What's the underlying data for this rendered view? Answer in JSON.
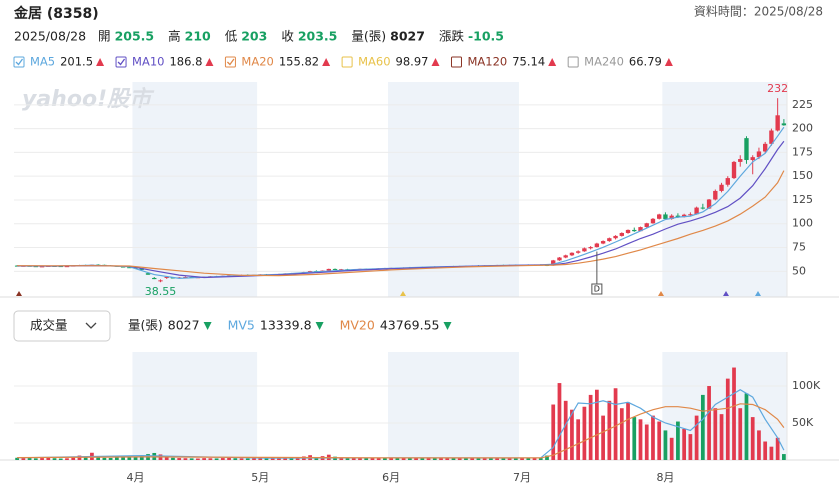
{
  "header": {
    "name": "金居 (8358)",
    "data_time": "資料時間：2025/08/28",
    "date": "2025/08/28",
    "quote": [
      {
        "label": "開",
        "value": 205.5,
        "color": "#18a062"
      },
      {
        "label": "高",
        "value": 210,
        "color": "#18a062"
      },
      {
        "label": "低",
        "value": 203,
        "color": "#18a062"
      },
      {
        "label": "收",
        "value": 203.5,
        "color": "#18a062"
      },
      {
        "label": "量(張)",
        "value": 8027,
        "color": "#222222"
      },
      {
        "label": "漲跌",
        "value": -10.5,
        "color": "#18a062"
      }
    ]
  },
  "watermark": "yahoo!股市",
  "chart_data": {
    "type": "candlestick",
    "up_color": "#e23a4e",
    "down_color": "#18a062",
    "categories": [
      null,
      null,
      null,
      null,
      null,
      null,
      null,
      null,
      null,
      null,
      null,
      null,
      null,
      null,
      null,
      null,
      null,
      null,
      null,
      "4月",
      null,
      null,
      null,
      null,
      null,
      null,
      null,
      null,
      null,
      null,
      null,
      null,
      null,
      null,
      null,
      null,
      null,
      null,
      null,
      "5月",
      null,
      null,
      null,
      null,
      null,
      null,
      null,
      null,
      null,
      null,
      null,
      null,
      null,
      null,
      null,
      null,
      null,
      null,
      null,
      null,
      "6月",
      null,
      null,
      null,
      null,
      null,
      null,
      null,
      null,
      null,
      null,
      null,
      null,
      null,
      null,
      null,
      null,
      null,
      null,
      null,
      null,
      "7月",
      null,
      null,
      null,
      null,
      null,
      null,
      null,
      null,
      null,
      null,
      null,
      null,
      null,
      null,
      null,
      null,
      null,
      null,
      null,
      null,
      null,
      null,
      "8月",
      null,
      null,
      null,
      null,
      null,
      null,
      null,
      null,
      null,
      null,
      null,
      null,
      null,
      null,
      null,
      null,
      null,
      null,
      null
    ],
    "ohlc": [
      [
        56,
        56.5,
        55.2,
        55.5
      ],
      [
        55.5,
        56,
        55,
        55.8
      ],
      [
        55.8,
        56.2,
        55.3,
        55.4
      ],
      [
        55.4,
        55.6,
        54.8,
        55
      ],
      [
        55,
        55.5,
        54.6,
        55.2
      ],
      [
        55.2,
        55.8,
        55,
        55.6
      ],
      [
        55.6,
        56,
        55.2,
        55.5
      ],
      [
        55.5,
        55.7,
        55,
        55.1
      ],
      [
        55.1,
        55.6,
        54.9,
        55.4
      ],
      [
        55.4,
        56.2,
        55.3,
        56
      ],
      [
        56,
        56.8,
        55.8,
        56.5
      ],
      [
        56.5,
        57,
        56,
        56.2
      ],
      [
        56.2,
        57.2,
        56,
        57
      ],
      [
        57,
        57.5,
        56.5,
        56.8
      ],
      [
        56.8,
        57,
        56,
        56.2
      ],
      [
        56.2,
        56.5,
        55.5,
        55.8
      ],
      [
        55.8,
        56,
        54.8,
        55
      ],
      [
        55,
        55.2,
        54,
        54.3
      ],
      [
        54.3,
        54.8,
        53.5,
        54
      ],
      [
        54,
        54.5,
        53,
        53.2
      ],
      [
        53.2,
        53.5,
        51,
        51.5
      ],
      [
        48,
        48.5,
        46.4,
        46.4
      ],
      [
        43,
        44,
        41.8,
        41.8
      ],
      [
        40,
        41.5,
        38.55,
        40.5
      ],
      [
        43,
        44.5,
        42,
        44.2
      ],
      [
        43.5,
        44,
        42.5,
        43
      ],
      [
        43,
        44,
        42.6,
        43.6
      ],
      [
        43.6,
        44.5,
        43.2,
        44
      ],
      [
        44,
        44.3,
        43,
        43.4
      ],
      [
        43.4,
        44,
        43,
        43.8
      ],
      [
        43.8,
        44.6,
        43.5,
        44.4
      ],
      [
        44.4,
        45,
        44,
        44.8
      ],
      [
        44.8,
        45.2,
        44.3,
        44.6
      ],
      [
        44.6,
        45.5,
        44.5,
        45.3
      ],
      [
        45.3,
        46,
        45,
        45.8
      ],
      [
        45.8,
        46.2,
        45.3,
        45.6
      ],
      [
        45.6,
        46.5,
        45.5,
        46.2
      ],
      [
        46.2,
        46.8,
        45.8,
        46
      ],
      [
        46,
        46.6,
        45.7,
        46.4
      ],
      [
        46.4,
        47,
        46,
        46.8
      ],
      [
        46.8,
        47.2,
        46.3,
        46.5
      ],
      [
        46.5,
        47,
        46.2,
        46.9
      ],
      [
        46.9,
        47.5,
        46.6,
        47.2
      ],
      [
        47.2,
        48,
        47,
        47.8
      ],
      [
        47.8,
        48.3,
        47.2,
        47.5
      ],
      [
        47.5,
        48.5,
        47.3,
        48.3
      ],
      [
        48.3,
        49.5,
        48,
        49.2
      ],
      [
        49.2,
        50.5,
        49,
        50.2
      ],
      [
        50.2,
        51,
        49.6,
        49.8
      ],
      [
        49.8,
        51,
        49.5,
        50.8
      ],
      [
        50.8,
        52.8,
        50.5,
        52.5
      ],
      [
        52.5,
        53,
        51.6,
        51.8
      ],
      [
        51.8,
        52.5,
        51.2,
        52.2
      ],
      [
        52.2,
        52.6,
        51.5,
        51.7
      ],
      [
        51.7,
        52.3,
        51.2,
        52
      ],
      [
        52,
        52.8,
        51.8,
        52.6
      ],
      [
        52.6,
        53,
        52,
        52.3
      ],
      [
        52.3,
        53,
        52.1,
        52.8
      ],
      [
        52.8,
        53.5,
        52.5,
        53.2
      ],
      [
        53.2,
        53.6,
        52.7,
        53
      ],
      [
        53,
        53.8,
        52.8,
        53.6
      ],
      [
        53.6,
        54,
        53.2,
        53.4
      ],
      [
        53.4,
        54.2,
        53.2,
        54
      ],
      [
        54,
        54.6,
        53.6,
        53.8
      ],
      [
        53.8,
        54.5,
        53.5,
        54.3
      ],
      [
        54.3,
        54.8,
        53.9,
        54.1
      ],
      [
        54.1,
        55,
        54,
        54.8
      ],
      [
        54.8,
        55.3,
        54.4,
        54.6
      ],
      [
        54.6,
        55.2,
        54.3,
        55
      ],
      [
        55,
        55.6,
        54.7,
        55.3
      ],
      [
        55.3,
        55.7,
        54.9,
        55.1
      ],
      [
        55.1,
        55.8,
        55,
        55.6
      ],
      [
        55.6,
        56,
        55.2,
        55.4
      ],
      [
        55.4,
        56.2,
        55.3,
        56
      ],
      [
        56,
        56.5,
        55.6,
        55.8
      ],
      [
        55.8,
        56.4,
        55.5,
        56.2
      ],
      [
        56.2,
        56.6,
        55.8,
        56
      ],
      [
        56,
        56.8,
        55.9,
        56.5
      ],
      [
        56.5,
        57,
        56.1,
        56.3
      ],
      [
        56.3,
        56.9,
        56.1,
        56.7
      ],
      [
        56.7,
        57.2,
        56.3,
        56.5
      ],
      [
        56.5,
        57,
        56.2,
        56.8
      ],
      [
        56.8,
        57.3,
        56.4,
        56.6
      ],
      [
        56.6,
        57.2,
        56.3,
        57
      ],
      [
        57,
        57.4,
        56.5,
        56.7
      ],
      [
        56.7,
        57,
        55.5,
        55.8
      ],
      [
        56,
        62,
        55.8,
        61.5
      ],
      [
        61.5,
        65,
        61,
        64.5
      ],
      [
        64.5,
        67.5,
        63.8,
        66.8
      ],
      [
        66.8,
        70,
        66,
        69.5
      ],
      [
        69.5,
        72,
        68.5,
        71
      ],
      [
        71,
        75,
        70.5,
        74.2
      ],
      [
        74.2,
        76.5,
        73,
        75.5
      ],
      [
        75.5,
        80,
        75,
        79.2
      ],
      [
        79.2,
        82.5,
        78.5,
        81.8
      ],
      [
        81.8,
        85.5,
        81,
        84.8
      ],
      [
        84.8,
        88,
        83.5,
        87.2
      ],
      [
        87.2,
        91,
        86.5,
        90.3
      ],
      [
        90.3,
        94,
        89.5,
        93.5
      ],
      [
        93.5,
        96,
        91.5,
        92.2
      ],
      [
        92.2,
        97,
        92,
        96.5
      ],
      [
        96.5,
        101,
        95.8,
        100.5
      ],
      [
        100.5,
        106,
        100,
        105.2
      ],
      [
        105.2,
        110.5,
        104.5,
        109.8
      ],
      [
        109.8,
        112,
        104,
        105
      ],
      [
        105,
        110,
        104.2,
        108.5
      ],
      [
        108.5,
        111,
        106,
        107
      ],
      [
        107,
        110.5,
        106.5,
        109.5
      ],
      [
        109.5,
        112,
        108.5,
        110
      ],
      [
        110,
        118,
        109.5,
        117
      ],
      [
        117,
        121,
        115,
        116
      ],
      [
        116,
        126,
        115.5,
        125.5
      ],
      [
        125.5,
        136,
        124.5,
        134.5
      ],
      [
        134.5,
        143,
        133,
        141
      ],
      [
        141,
        150,
        139,
        148
      ],
      [
        148,
        166,
        147,
        165
      ],
      [
        165,
        172,
        160,
        168
      ],
      [
        190,
        192,
        163,
        167
      ],
      [
        167,
        172,
        152,
        170
      ],
      [
        170,
        180,
        168,
        176
      ],
      [
        176,
        186,
        174,
        184
      ],
      [
        184,
        200,
        182,
        198
      ],
      [
        198,
        232,
        197,
        214
      ],
      [
        205.5,
        210,
        203,
        203.5
      ]
    ],
    "ylim": [
      23,
      249
    ],
    "yticks": [
      50,
      75,
      100,
      125,
      150,
      175,
      200,
      225
    ],
    "grid": true,
    "ma_legend": [
      {
        "name": "MA5",
        "value": 201.5,
        "color": "#5ea8de",
        "checked": true,
        "trend": "up",
        "x": [
          0,
          6,
          12,
          18,
          22,
          26,
          30,
          36,
          42,
          48,
          54,
          60,
          66,
          72,
          78,
          84,
          86,
          88,
          90,
          92,
          94,
          96,
          98,
          100,
          102,
          104,
          106,
          108,
          110,
          112,
          114,
          116,
          118,
          120,
          122,
          123
        ],
        "values": [
          55.6,
          55.4,
          56.4,
          54.8,
          46.5,
          42.5,
          43.8,
          45.5,
          46.8,
          49.5,
          51.8,
          53.2,
          54.5,
          55.4,
          56.2,
          56.8,
          57.5,
          61,
          65.5,
          70.2,
          75.2,
          80.8,
          86.5,
          92.5,
          98.5,
          104.5,
          107,
          108,
          112.5,
          121,
          134,
          150,
          165,
          174,
          192,
          201.5
        ]
      },
      {
        "name": "MA10",
        "value": 186.8,
        "color": "#6150c4",
        "checked": true,
        "trend": "up",
        "x": [
          0,
          6,
          12,
          18,
          22,
          26,
          30,
          36,
          42,
          48,
          54,
          60,
          66,
          72,
          78,
          84,
          86,
          88,
          90,
          92,
          94,
          96,
          98,
          100,
          102,
          104,
          106,
          108,
          110,
          112,
          114,
          116,
          118,
          120,
          122,
          123
        ],
        "values": [
          55.8,
          55.6,
          56,
          55.4,
          50.5,
          46,
          43.5,
          44.8,
          46.2,
          48.5,
          51,
          52.7,
          54,
          55.2,
          56,
          56.6,
          56.8,
          58.5,
          61.5,
          65,
          69,
          73.5,
          79,
          84.5,
          89,
          94.5,
          99.5,
          103,
          107,
          112,
          118,
          127,
          140,
          158,
          178,
          186.8
        ]
      },
      {
        "name": "MA20",
        "value": 155.82,
        "color": "#e08848",
        "checked": true,
        "trend": "up",
        "x": [
          0,
          6,
          12,
          18,
          22,
          26,
          30,
          36,
          42,
          48,
          54,
          60,
          66,
          72,
          78,
          84,
          86,
          88,
          90,
          92,
          94,
          96,
          98,
          100,
          102,
          104,
          106,
          108,
          110,
          112,
          114,
          116,
          118,
          120,
          122,
          123
        ],
        "values": [
          55.9,
          55.8,
          55.9,
          55.6,
          53,
          50.5,
          48,
          45.8,
          45.5,
          46.8,
          49.2,
          51.5,
          53.2,
          54.6,
          55.6,
          56.3,
          56.5,
          57.2,
          58.5,
          60.5,
          62.8,
          65.5,
          69,
          72.5,
          76.5,
          80.5,
          84.5,
          89,
          93,
          97.5,
          103,
          110,
          118.5,
          128,
          143,
          155.82
        ]
      },
      {
        "name": "MA60",
        "value": 98.97,
        "color": "#e8c24a",
        "checked": false,
        "trend": "up"
      },
      {
        "name": "MA120",
        "value": 75.14,
        "color": "#8a3324",
        "checked": false,
        "trend": "up"
      },
      {
        "name": "MA240",
        "value": 66.79,
        "color": "#9a9a9a",
        "checked": false,
        "trend": "up"
      }
    ],
    "events": [
      {
        "label": "D",
        "index": 93
      }
    ],
    "volume": {
      "selector": "成交量",
      "values": [
        3000,
        2500,
        2800,
        2200,
        2600,
        3100,
        2400,
        2000,
        2300,
        4500,
        6000,
        3500,
        9800,
        5000,
        3000,
        2800,
        3600,
        4200,
        3800,
        4000,
        5500,
        8000,
        9500,
        7500,
        5200,
        3000,
        2600,
        2400,
        2200,
        2000,
        2500,
        2300,
        2100,
        2600,
        3000,
        2400,
        2200,
        2000,
        2300,
        2200,
        2000,
        2100,
        2500,
        3000,
        2600,
        3400,
        4800,
        6500,
        4000,
        5200,
        7200,
        4500,
        3000,
        2600,
        2500,
        2800,
        2300,
        2400,
        3000,
        2600,
        2800,
        2400,
        3000,
        2500,
        2800,
        2300,
        3500,
        2600,
        3000,
        3200,
        2500,
        3000,
        2400,
        3300,
        2700,
        3000,
        2500,
        3100,
        2600,
        2800,
        2400,
        2500,
        2800,
        3000,
        2600,
        6000,
        75000,
        104000,
        80000,
        68000,
        55000,
        72000,
        88000,
        95000,
        60000,
        80000,
        97000,
        70000,
        78000,
        58000,
        55000,
        48000,
        60000,
        52000,
        40000,
        30000,
        52000,
        42000,
        35000,
        60000,
        88000,
        100000,
        70000,
        62000,
        110000,
        125000,
        70000,
        90000,
        58000,
        40000,
        25000,
        18000,
        30000,
        8027
      ],
      "ylim": [
        0,
        146000
      ],
      "yticks": [
        {
          "value": 50000,
          "label": "50K"
        },
        {
          "value": 100000,
          "label": "100K"
        }
      ],
      "legend": [
        {
          "name": "量(張)",
          "value": 8027,
          "color": "#222222",
          "trend": "down"
        },
        {
          "name": "MV5",
          "value": 13339.8,
          "color": "#5ea8de",
          "trend": "down",
          "x": [
            0,
            20,
            40,
            60,
            80,
            84,
            86,
            88,
            90,
            92,
            94,
            96,
            98,
            100,
            102,
            104,
            106,
            108,
            110,
            112,
            114,
            116,
            118,
            120,
            122,
            123
          ],
          "values": [
            3000,
            6000,
            2500,
            2800,
            2700,
            3000,
            17000,
            48000,
            77000,
            76000,
            80000,
            75000,
            78000,
            70000,
            58000,
            50000,
            45000,
            40000,
            55000,
            75000,
            85000,
            95000,
            85000,
            55000,
            30000,
            13339.8
          ]
        },
        {
          "name": "MV20",
          "value": 43769.55,
          "color": "#e08848",
          "trend": "down",
          "x": [
            0,
            20,
            40,
            60,
            80,
            84,
            86,
            88,
            90,
            92,
            94,
            96,
            98,
            100,
            102,
            104,
            106,
            108,
            110,
            112,
            114,
            116,
            118,
            120,
            122,
            123
          ],
          "values": [
            3200,
            4200,
            3500,
            2800,
            2800,
            2900,
            6500,
            14000,
            22000,
            30000,
            38000,
            46000,
            55000,
            62000,
            68000,
            72000,
            72000,
            70000,
            66000,
            68000,
            70000,
            76000,
            75000,
            68000,
            55000,
            43769.55
          ]
        }
      ]
    }
  }
}
